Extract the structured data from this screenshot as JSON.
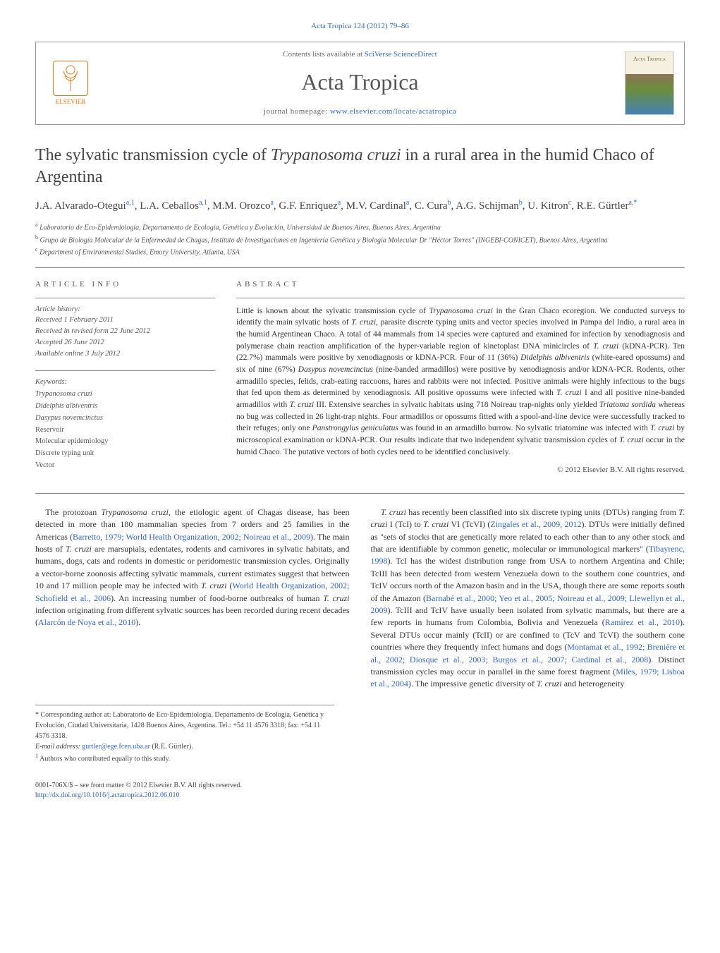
{
  "header": {
    "citation": "Acta Tropica 124 (2012) 79–86",
    "contents_available": "Contents lists available at",
    "contents_link": "SciVerse ScienceDirect",
    "journal_name": "Acta Tropica",
    "homepage_label": "journal homepage:",
    "homepage_url": "www.elsevier.com/locate/actatropica",
    "publisher": "ELSEVIER",
    "cover_label": "Acta Tropica"
  },
  "article": {
    "title_1": "The sylvatic transmission cycle of ",
    "title_italic": "Trypanosoma cruzi",
    "title_2": " in a rural area in the humid Chaco of Argentina",
    "authors_html": "J.A. Alvarado-Otegui|a,1|, L.A. Ceballos|a,1|, M.M. Orozco|a|, G.F. Enriquez|a|, M.V. Cardinal|a|, C. Cura|b|, A.G. Schijman|b|, U. Kitron|c|, R.E. Gürtler|a,*|"
  },
  "affiliations": {
    "a": "Laboratorio de Eco-Epidemiología, Departamento de Ecología, Genética y Evolución, Universidad de Buenos Aires, Buenos Aires, Argentina",
    "b": "Grupo de Biología Molecular de la Enfermedad de Chagas, Instituto de Investigaciones en Ingeniería Genética y Biología Molecular Dr \"Héctor Torres\" (INGEBI-CONICET), Buenos Aires, Argentina",
    "c": "Department of Environmental Studies, Emory University, Atlanta, USA"
  },
  "article_info": {
    "heading": "ARTICLE INFO",
    "history_label": "Article history:",
    "received": "Received 1 February 2011",
    "revised": "Received in revised form 22 June 2012",
    "accepted": "Accepted 26 June 2012",
    "online": "Available online 3 July 2012",
    "keywords_label": "Keywords:",
    "keywords": [
      "Trypanosoma cruzi",
      "Didelphis albiventris",
      "Dasypus novemcinctus",
      "Reservoir",
      "Molecular epidemiology",
      "Discrete typing unit",
      "Vector"
    ]
  },
  "abstract": {
    "heading": "ABSTRACT",
    "text": "Little is known about the sylvatic transmission cycle of Trypanosoma cruzi in the Gran Chaco ecoregion. We conducted surveys to identify the main sylvatic hosts of T. cruzi, parasite discrete typing units and vector species involved in Pampa del Indio, a rural area in the humid Argentinean Chaco. A total of 44 mammals from 14 species were captured and examined for infection by xenodiagnosis and polymerase chain reaction amplification of the hyper-variable region of kinetoplast DNA minicircles of T. cruzi (kDNA-PCR). Ten (22.7%) mammals were positive by xenodiagnosis or kDNA-PCR. Four of 11 (36%) Didelphis albiventris (white-eared opossums) and six of nine (67%) Dasypus novemcinctus (nine-banded armadillos) were positive by xenodiagnosis and/or kDNA-PCR. Rodents, other armadillo species, felids, crab-eating raccoons, hares and rabbits were not infected. Positive animals were highly infectious to the bugs that fed upon them as determined by xenodiagnosis. All positive opossums were infected with T. cruzi I and all positive nine-banded armadillos with T. cruzi III. Extensive searches in sylvatic habitats using 718 Noireau trap-nights only yielded Triatoma sordida whereas no bug was collected in 26 light-trap nights. Four armadillos or opossums fitted with a spool-and-line device were successfully tracked to their refuges; only one Panstrongylus geniculatus was found in an armadillo burrow. No sylvatic triatomine was infected with T. cruzi by microscopical examination or kDNA-PCR. Our results indicate that two independent sylvatic transmission cycles of T. cruzi occur in the humid Chaco. The putative vectors of both cycles need to be identified conclusively.",
    "copyright": "© 2012 Elsevier B.V. All rights reserved."
  },
  "body": {
    "left": "The protozoan Trypanosoma cruzi, the etiologic agent of Chagas disease, has been detected in more than 180 mammalian species from 7 orders and 25 families in the Americas (Barretto, 1979; World Health Organization, 2002; Noireau et al., 2009). The main hosts of T. cruzi are marsupials, edentates, rodents and carnivores in sylvatic habitats, and humans, dogs, cats and rodents in domestic or peridomestic transmission cycles. Originally a vector-borne zoonosis affecting sylvatic mammals, current estimates suggest that between 10 and 17 million people may be infected with T. cruzi (World Health Organization, 2002; Schofield et al., 2006). An increasing number of food-borne outbreaks of human T. cruzi infection originating from different sylvatic sources has been recorded during recent decades (Alarcón de Noya et al., 2010).",
    "right": "T. cruzi has recently been classified into six discrete typing units (DTUs) ranging from T. cruzi I (TcI) to T. cruzi VI (TcVI) (Zingales et al., 2009, 2012). DTUs were initially defined as \"sets of stocks that are genetically more related to each other than to any other stock and that are identifiable by common genetic, molecular or immunological markers\" (Tibayrenc, 1998). TcI has the widest distribution range from USA to northern Argentina and Chile; TcIII has been detected from western Venezuela down to the southern cone countries, and TcIV occurs north of the Amazon basin and in the USA, though there are some reports south of the Amazon (Barnabé et al., 2000; Yeo et al., 2005; Noireau et al., 2009; Llewellyn et al., 2009). TcIII and TcIV have usually been isolated from sylvatic mammals, but there are a few reports in humans from Colombia, Bolivia and Venezuela (Ramírez et al., 2010). Several DTUs occur mainly (TcII) or are confined to (TcV and TcVI) the southern cone countries where they frequently infect humans and dogs (Montamat et al., 1992; Brenière et al., 2002; Diosque et al., 2003; Burgos et al., 2007; Cardinal et al., 2008). Distinct transmission cycles may occur in parallel in the same forest fragment (Miles, 1979; Lisboa et al., 2004). The impressive genetic diversity of T. cruzi and heterogeneity"
  },
  "footnotes": {
    "corresponding": "Corresponding author at: Laboratorio de Eco-Epidemiología, Departamento de Ecología, Genética y Evolución, Ciudad Universitaria, 1428 Buenos Aires, Argentina. Tel.: +54 11 4576 3318; fax: +54 11 4576 3318.",
    "email_label": "E-mail address:",
    "email": "gurtler@ege.fcen.uba.ar",
    "email_name": "(R.E. Gürtler).",
    "note1": "Authors who contributed equally to this study."
  },
  "footer": {
    "issn": "0001-706X/$ – see front matter © 2012 Elsevier B.V. All rights reserved.",
    "doi": "http://dx.doi.org/10.1016/j.actatropica.2012.06.010"
  },
  "style": {
    "link_color": "#3366bb",
    "text_color": "#333333",
    "muted_color": "#555555",
    "rule_color": "#888888",
    "elsevier_color": "#e67817"
  }
}
